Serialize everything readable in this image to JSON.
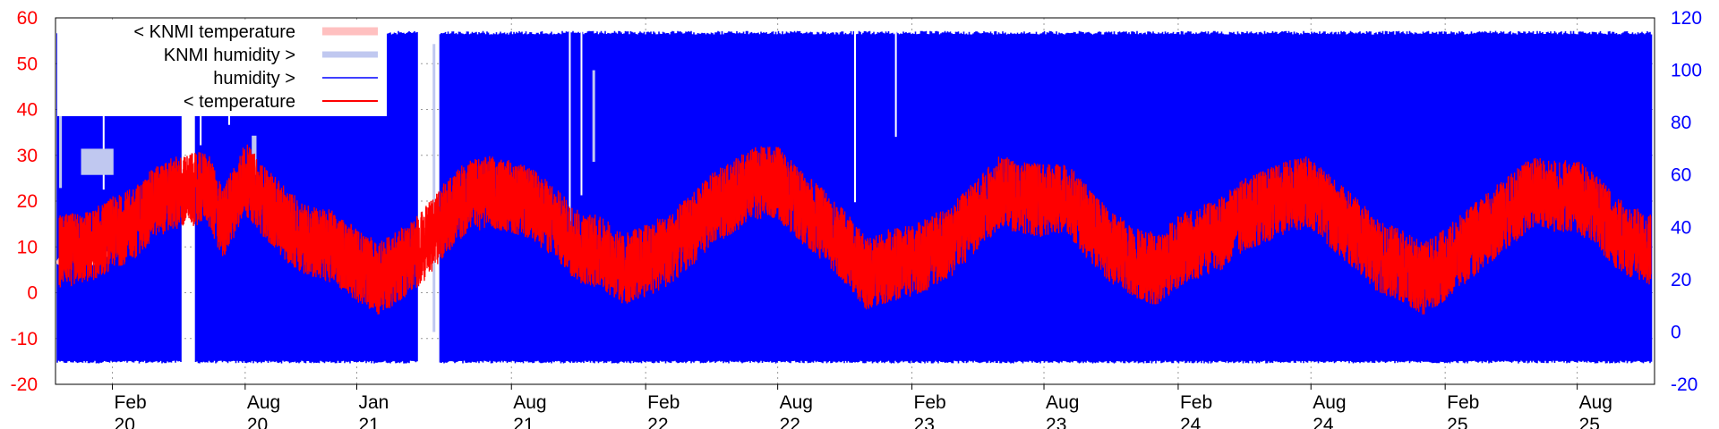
{
  "chart_data": {
    "type": "line",
    "title": "",
    "x_range": [
      "2019-11-15",
      "2025-11-15"
    ],
    "y_left": {
      "range": [
        -20,
        60
      ],
      "ticks": [
        -20,
        -10,
        0,
        10,
        20,
        30,
        40,
        50,
        60
      ],
      "color": "#ff0000"
    },
    "y_right": {
      "range": [
        -20,
        120
      ],
      "ticks": [
        -20,
        0,
        20,
        40,
        60,
        80,
        100,
        120
      ],
      "color": "#0000ff"
    },
    "x_ticks": [
      {
        "date": "2020-02-01",
        "month": "Feb",
        "year": "20"
      },
      {
        "date": "2020-08-01",
        "month": "Aug",
        "year": "20"
      },
      {
        "date": "2021-01-01",
        "month": "Jan",
        "year": "21"
      },
      {
        "date": "2021-08-01",
        "month": "Aug",
        "year": "21"
      },
      {
        "date": "2022-02-01",
        "month": "Feb",
        "year": "22"
      },
      {
        "date": "2022-08-01",
        "month": "Aug",
        "year": "22"
      },
      {
        "date": "2023-02-01",
        "month": "Feb",
        "year": "23"
      },
      {
        "date": "2023-08-01",
        "month": "Aug",
        "year": "23"
      },
      {
        "date": "2024-02-01",
        "month": "Feb",
        "year": "24"
      },
      {
        "date": "2024-08-01",
        "month": "Aug",
        "year": "24"
      },
      {
        "date": "2025-02-01",
        "month": "Feb",
        "year": "25"
      },
      {
        "date": "2025-08-01",
        "month": "Aug",
        "year": "25"
      }
    ],
    "grid": true,
    "legend_position": "top-left",
    "series": [
      {
        "name": "< KNMI temperature",
        "axis": "left",
        "color": "#ffc0c0",
        "points": [
          [
            "2019-11-20",
            6
          ],
          [
            "2019-12-10",
            11
          ],
          [
            "2020-01-05",
            7
          ],
          [
            "2020-01-25",
            9
          ]
        ]
      },
      {
        "name": "KNMI humidity >",
        "axis": "right",
        "color": "#c0c8f0",
        "points": [
          [
            "2019-11-20",
            55
          ],
          [
            "2019-12-05",
            105
          ],
          [
            "2019-12-20",
            60
          ],
          [
            "2020-06-15",
            70
          ],
          [
            "2020-08-10",
            60
          ],
          [
            "2020-09-05",
            75
          ],
          [
            "2021-04-15",
            0
          ],
          [
            "2021-04-25",
            110
          ],
          [
            "2021-11-20",
            65
          ],
          [
            "2021-12-01",
            100
          ],
          [
            "2021-12-10",
            55
          ]
        ]
      },
      {
        "name": "humidity >",
        "axis": "right",
        "color": "#0000ff",
        "min": -12,
        "max": 115
      },
      {
        "name": "< temperature",
        "axis": "left",
        "color": "#ff0000",
        "points": [
          [
            "2019-11-20",
            9
          ],
          [
            "2020-01-01",
            10
          ],
          [
            "2020-02-01",
            13
          ],
          [
            "2020-03-01",
            15
          ],
          [
            "2020-04-01",
            20
          ],
          [
            "2020-05-01",
            22
          ],
          [
            "2020-06-10",
            23
          ],
          [
            "2020-07-01",
            15
          ],
          [
            "2020-08-01",
            25
          ],
          [
            "2020-09-01",
            19
          ],
          [
            "2020-10-01",
            14
          ],
          [
            "2020-11-01",
            11
          ],
          [
            "2020-12-01",
            10
          ],
          [
            "2021-01-01",
            6
          ],
          [
            "2021-02-01",
            3
          ],
          [
            "2021-03-01",
            6
          ],
          [
            "2021-04-01",
            10
          ],
          [
            "2021-05-01",
            16
          ],
          [
            "2021-06-01",
            21
          ],
          [
            "2021-07-01",
            22
          ],
          [
            "2021-08-01",
            21
          ],
          [
            "2021-09-01",
            19
          ],
          [
            "2021-10-01",
            15
          ],
          [
            "2021-11-01",
            10
          ],
          [
            "2021-12-01",
            9
          ],
          [
            "2022-01-01",
            5
          ],
          [
            "2022-02-01",
            7
          ],
          [
            "2022-03-01",
            9
          ],
          [
            "2022-04-01",
            13
          ],
          [
            "2022-05-01",
            18
          ],
          [
            "2022-06-01",
            21
          ],
          [
            "2022-07-01",
            24
          ],
          [
            "2022-08-01",
            24
          ],
          [
            "2022-09-01",
            19
          ],
          [
            "2022-10-01",
            15
          ],
          [
            "2022-11-01",
            10
          ],
          [
            "2022-12-01",
            4
          ],
          [
            "2023-01-01",
            6
          ],
          [
            "2023-02-01",
            7
          ],
          [
            "2023-03-01",
            9
          ],
          [
            "2023-04-01",
            12
          ],
          [
            "2023-05-01",
            17
          ],
          [
            "2023-06-01",
            22
          ],
          [
            "2023-07-01",
            21
          ],
          [
            "2023-08-01",
            20
          ],
          [
            "2023-09-01",
            21
          ],
          [
            "2023-10-01",
            15
          ],
          [
            "2023-11-01",
            10
          ],
          [
            "2023-12-01",
            7
          ],
          [
            "2024-01-01",
            5
          ],
          [
            "2024-02-01",
            9
          ],
          [
            "2024-03-01",
            11
          ],
          [
            "2024-04-01",
            13
          ],
          [
            "2024-05-01",
            17
          ],
          [
            "2024-06-01",
            19
          ],
          [
            "2024-07-01",
            21
          ],
          [
            "2024-08-01",
            22
          ],
          [
            "2024-09-01",
            17
          ],
          [
            "2024-10-01",
            13
          ],
          [
            "2024-11-01",
            8
          ],
          [
            "2024-12-01",
            6
          ],
          [
            "2025-01-01",
            3
          ],
          [
            "2025-02-01",
            6
          ],
          [
            "2025-03-01",
            10
          ],
          [
            "2025-04-01",
            14
          ],
          [
            "2025-05-01",
            18
          ],
          [
            "2025-06-01",
            22
          ],
          [
            "2025-07-01",
            21
          ],
          [
            "2025-08-01",
            21
          ],
          [
            "2025-09-01",
            17
          ],
          [
            "2025-10-01",
            12
          ],
          [
            "2025-11-10",
            9
          ]
        ]
      }
    ]
  }
}
